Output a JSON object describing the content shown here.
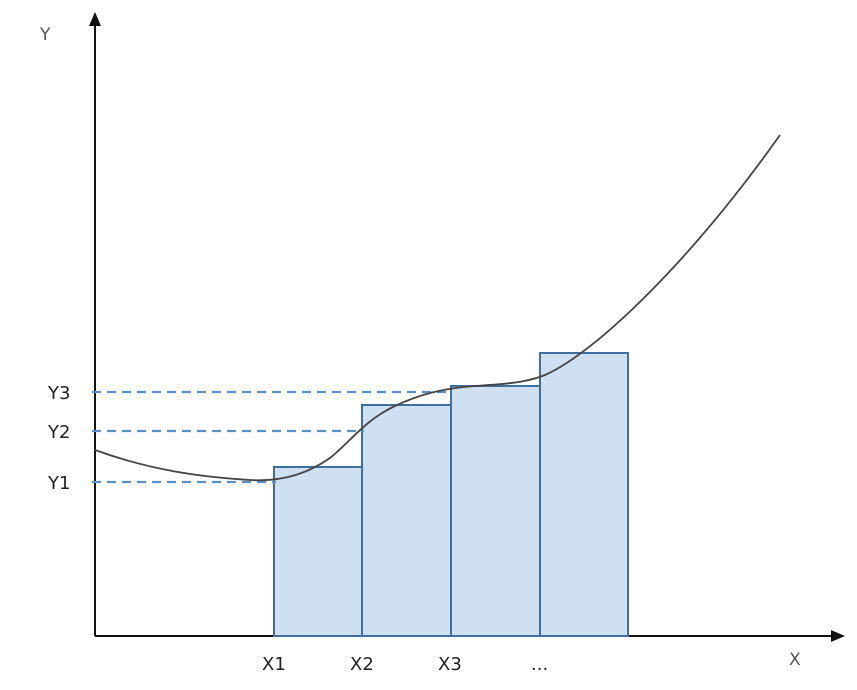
{
  "axes": {
    "x_title": "X",
    "y_title": "Y"
  },
  "x_labels": [
    "X1",
    "X2",
    "X3",
    "..."
  ],
  "y_labels": [
    "Y3",
    "Y2",
    "Y1"
  ],
  "colors": {
    "axis": "#111111",
    "curve": "#444444",
    "bar_fill": "#cfe0f2",
    "bar_stroke": "#3f6f9f",
    "dashed_guide": "#5b8fc7"
  }
}
